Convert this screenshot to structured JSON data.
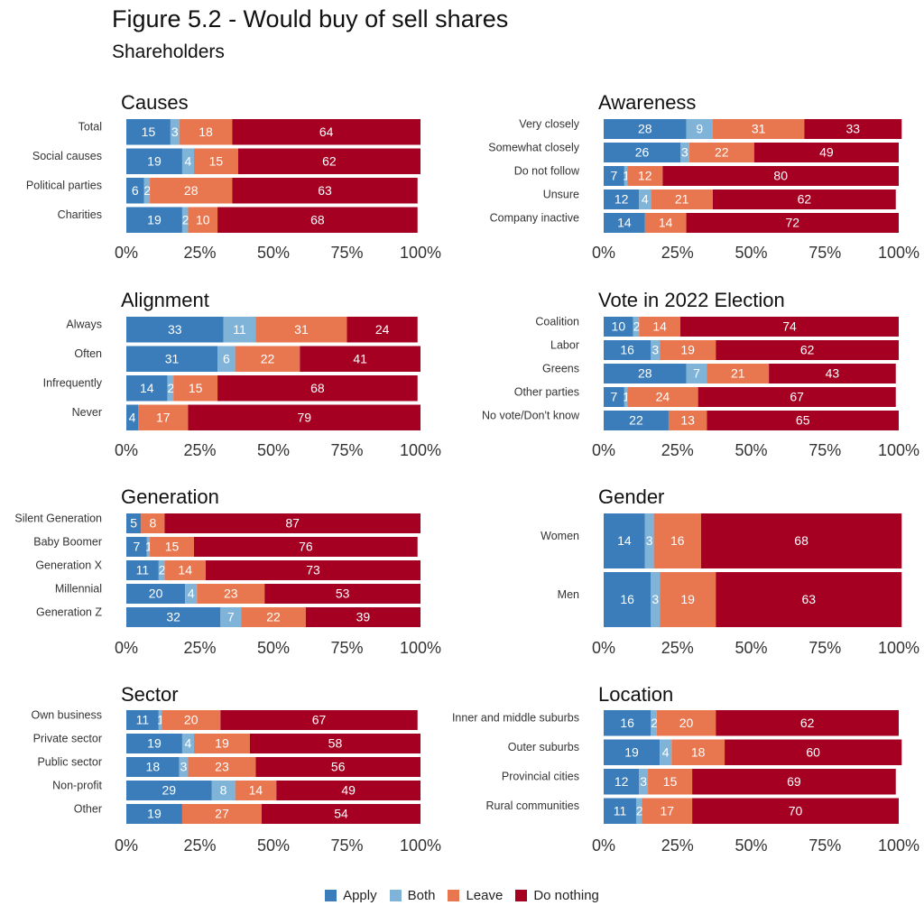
{
  "title": "Figure 5.2 - Would buy of sell shares",
  "subtitle": "Shareholders",
  "colors": {
    "Apply": "#3a7dba",
    "Both": "#7fb3d8",
    "Leave": "#e8774f",
    "Do nothing": "#a50021"
  },
  "legend": [
    "Apply",
    "Both",
    "Leave",
    "Do nothing"
  ],
  "x_tick_labels": [
    "0%",
    "25%",
    "50%",
    "75%",
    "100%"
  ],
  "chart_data": [
    {
      "type": "bar",
      "stacked": true,
      "orientation": "horizontal",
      "title": "Causes",
      "categories": [
        "Total",
        "Social causes",
        "Political parties",
        "Charities"
      ],
      "series": [
        {
          "name": "Apply",
          "values": [
            15,
            19,
            6,
            19
          ]
        },
        {
          "name": "Both",
          "values": [
            3,
            4,
            2,
            2
          ]
        },
        {
          "name": "Leave",
          "values": [
            18,
            15,
            28,
            10
          ]
        },
        {
          "name": "Do nothing",
          "values": [
            64,
            62,
            63,
            68
          ]
        }
      ],
      "xlim": [
        0,
        100
      ]
    },
    {
      "type": "bar",
      "stacked": true,
      "orientation": "horizontal",
      "title": "Awareness",
      "categories": [
        "Very closely",
        "Somewhat closely",
        "Do not follow",
        "Unsure",
        "Company inactive"
      ],
      "series": [
        {
          "name": "Apply",
          "values": [
            28,
            26,
            7,
            12,
            14
          ]
        },
        {
          "name": "Both",
          "values": [
            9,
            3,
            1,
            4,
            0
          ]
        },
        {
          "name": "Leave",
          "values": [
            31,
            22,
            12,
            21,
            14
          ]
        },
        {
          "name": "Do nothing",
          "values": [
            33,
            49,
            80,
            62,
            72
          ]
        }
      ],
      "xlim": [
        0,
        100
      ]
    },
    {
      "type": "bar",
      "stacked": true,
      "orientation": "horizontal",
      "title": "Alignment",
      "categories": [
        "Always",
        "Often",
        "Infrequently",
        "Never"
      ],
      "series": [
        {
          "name": "Apply",
          "values": [
            33,
            31,
            14,
            4
          ]
        },
        {
          "name": "Both",
          "values": [
            11,
            6,
            2,
            0
          ]
        },
        {
          "name": "Leave",
          "values": [
            31,
            22,
            15,
            17
          ]
        },
        {
          "name": "Do nothing",
          "values": [
            24,
            41,
            68,
            79
          ]
        }
      ],
      "xlim": [
        0,
        100
      ]
    },
    {
      "type": "bar",
      "stacked": true,
      "orientation": "horizontal",
      "title": "Vote in 2022 Election",
      "categories": [
        "Coalition",
        "Labor",
        "Greens",
        "Other parties",
        "No vote/Don't know"
      ],
      "series": [
        {
          "name": "Apply",
          "values": [
            10,
            16,
            28,
            7,
            22
          ]
        },
        {
          "name": "Both",
          "values": [
            2,
            3,
            7,
            1,
            0
          ]
        },
        {
          "name": "Leave",
          "values": [
            14,
            19,
            21,
            24,
            13
          ]
        },
        {
          "name": "Do nothing",
          "values": [
            74,
            62,
            43,
            67,
            65
          ]
        }
      ],
      "xlim": [
        0,
        100
      ]
    },
    {
      "type": "bar",
      "stacked": true,
      "orientation": "horizontal",
      "title": "Generation",
      "categories": [
        "Silent Generation",
        "Baby Boomer",
        "Generation X",
        "Millennial",
        "Generation Z"
      ],
      "series": [
        {
          "name": "Apply",
          "values": [
            5,
            7,
            11,
            20,
            32
          ]
        },
        {
          "name": "Both",
          "values": [
            0,
            1,
            2,
            4,
            7
          ]
        },
        {
          "name": "Leave",
          "values": [
            8,
            15,
            14,
            23,
            22
          ]
        },
        {
          "name": "Do nothing",
          "values": [
            87,
            76,
            73,
            53,
            39
          ]
        }
      ],
      "xlim": [
        0,
        100
      ]
    },
    {
      "type": "bar",
      "stacked": true,
      "orientation": "horizontal",
      "title": "Gender",
      "categories": [
        "Women",
        "Men"
      ],
      "series": [
        {
          "name": "Apply",
          "values": [
            14,
            16
          ]
        },
        {
          "name": "Both",
          "values": [
            3,
            3
          ]
        },
        {
          "name": "Leave",
          "values": [
            16,
            19
          ]
        },
        {
          "name": "Do nothing",
          "values": [
            68,
            63
          ]
        }
      ],
      "xlim": [
        0,
        100
      ]
    },
    {
      "type": "bar",
      "stacked": true,
      "orientation": "horizontal",
      "title": "Sector",
      "categories": [
        "Own business",
        "Private sector",
        "Public sector",
        "Non-profit",
        "Other"
      ],
      "series": [
        {
          "name": "Apply",
          "values": [
            11,
            19,
            18,
            29,
            19
          ]
        },
        {
          "name": "Both",
          "values": [
            1,
            4,
            3,
            8,
            0
          ]
        },
        {
          "name": "Leave",
          "values": [
            20,
            19,
            23,
            14,
            27
          ]
        },
        {
          "name": "Do nothing",
          "values": [
            67,
            58,
            56,
            49,
            54
          ]
        }
      ],
      "xlim": [
        0,
        100
      ]
    },
    {
      "type": "bar",
      "stacked": true,
      "orientation": "horizontal",
      "title": "Location",
      "categories": [
        "Inner and middle suburbs",
        "Outer suburbs",
        "Provincial cities",
        "Rural communities"
      ],
      "series": [
        {
          "name": "Apply",
          "values": [
            16,
            19,
            12,
            11
          ]
        },
        {
          "name": "Both",
          "values": [
            2,
            4,
            3,
            2
          ]
        },
        {
          "name": "Leave",
          "values": [
            20,
            18,
            15,
            17
          ]
        },
        {
          "name": "Do nothing",
          "values": [
            62,
            60,
            69,
            70
          ]
        }
      ],
      "xlim": [
        0,
        100
      ]
    }
  ]
}
